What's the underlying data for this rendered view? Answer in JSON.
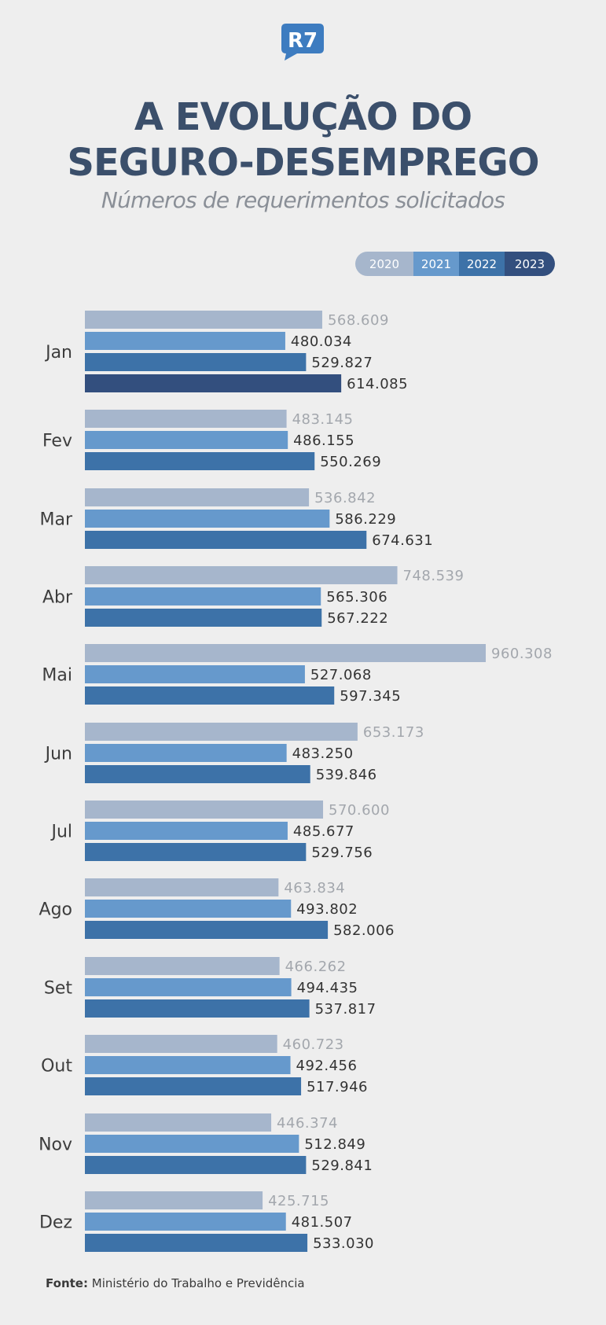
{
  "header": {
    "logo_text": "R7",
    "title_line1": "A EVOLUÇÃO DO",
    "title_line2": "SEGURO-DESEMPREGO",
    "subtitle": "Números de requerimentos solicitados"
  },
  "colors": {
    "2020": "#a6b6cc",
    "2021": "#6699cc",
    "2022": "#3d72a8",
    "2023": "#334f7e",
    "label_2020": "#a3a7ad",
    "label_other": "#333333",
    "month_label": "#3d3d3d"
  },
  "chart_data": {
    "type": "bar",
    "orientation": "horizontal",
    "title": "A EVOLUÇÃO DO SEGURO-DESEMPREGO",
    "subtitle": "Números de requerimentos solicitados",
    "categories": [
      "Jan",
      "Fev",
      "Mar",
      "Abr",
      "Mai",
      "Jun",
      "Jul",
      "Ago",
      "Set",
      "Out",
      "Nov",
      "Dez"
    ],
    "series": [
      {
        "name": "2020",
        "values": [
          568609,
          483145,
          536842,
          748539,
          960308,
          653173,
          570600,
          463834,
          466262,
          460723,
          446374,
          425715
        ],
        "labels": [
          "568.609",
          "483.145",
          "536.842",
          "748.539",
          "960.308",
          "653.173",
          "570.600",
          "463.834",
          "466.262",
          "460.723",
          "446.374",
          "425.715"
        ]
      },
      {
        "name": "2021",
        "values": [
          480034,
          486155,
          586229,
          565306,
          527068,
          483250,
          485677,
          493802,
          494435,
          492456,
          512849,
          481507
        ],
        "labels": [
          "480.034",
          "486.155",
          "586.229",
          "565.306",
          "527.068",
          "483.250",
          "485.677",
          "493.802",
          "494.435",
          "492.456",
          "512.849",
          "481.507"
        ]
      },
      {
        "name": "2022",
        "values": [
          529827,
          550269,
          674631,
          567222,
          597345,
          539846,
          529756,
          582006,
          537817,
          517946,
          529841,
          533030
        ],
        "labels": [
          "529.827",
          "550.269",
          "674.631",
          "567.222",
          "597.345",
          "539.846",
          "529.756",
          "582.006",
          "537.817",
          "517.946",
          "529.841",
          "533.030"
        ]
      },
      {
        "name": "2023",
        "values": [
          614085,
          null,
          null,
          null,
          null,
          null,
          null,
          null,
          null,
          null,
          null,
          null
        ],
        "labels": [
          "614.085",
          null,
          null,
          null,
          null,
          null,
          null,
          null,
          null,
          null,
          null,
          null
        ]
      }
    ],
    "legend_position": "top-right",
    "grid": false
  },
  "legend": [
    "2020",
    "2021",
    "2022",
    "2023"
  ],
  "source": {
    "label": "Fonte:",
    "text": "Ministério do Trabalho e Previdência"
  }
}
